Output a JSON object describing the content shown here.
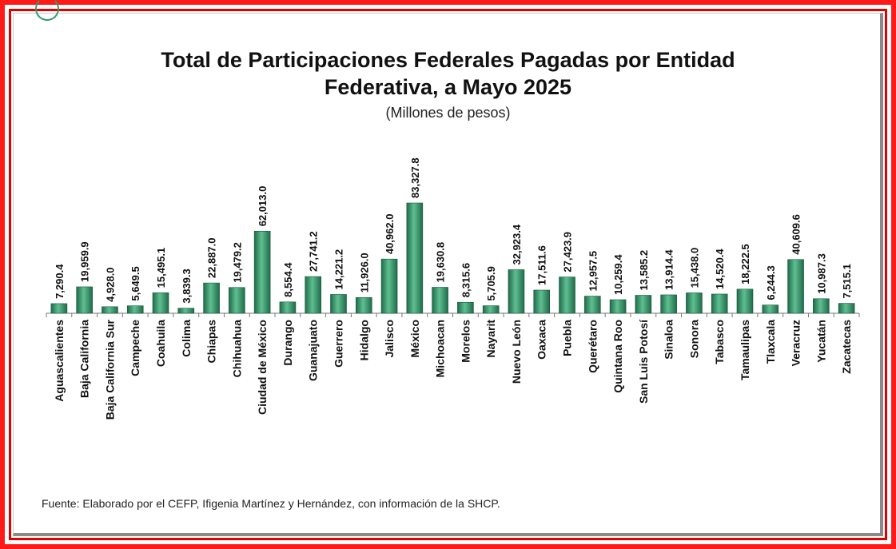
{
  "title_line1": "Total de Participaciones Federales Pagadas por Entidad",
  "title_line2": "Federativa, a Mayo 2025",
  "subtitle": "(Millones de pesos)",
  "footer": "Fuente: Elaborado por el CEFP, Ifigenia Martínez y Hernández, con información de la SHCP.",
  "colors": {
    "bar": "#2b8a60",
    "bar_dark": "#1f6b49",
    "bar_light": "#5fbf92",
    "frame": "#ff1a1a"
  },
  "chart_data": {
    "type": "bar",
    "title": "Total de Participaciones Federales Pagadas por Entidad Federativa, a Mayo 2025",
    "subtitle": "(Millones de pesos)",
    "ylim": [
      0,
      90000
    ],
    "grid": false,
    "categories": [
      "Aguascalientes",
      "Baja California",
      "Baja California Sur",
      "Campeche",
      "Coahuila",
      "Colima",
      "Chiapas",
      "Chihuahua",
      "Ciudad de México",
      "Durango",
      "Guanajuato",
      "Guerrero",
      "Hidalgo",
      "Jalisco",
      "México",
      "Michoacan",
      "Morelos",
      "Nayarit",
      "Nuevo León",
      "Oaxaca",
      "Puebla",
      "Querétaro",
      "Quintana Roo",
      "San Luis Potosí",
      "Sinaloa",
      "Sonora",
      "Tabasco",
      "Tamaulipas",
      "Tlaxcala",
      "Veracruz",
      "Yucatán",
      "Zacatecas"
    ],
    "values": [
      7290.4,
      19959.9,
      4928.0,
      5649.5,
      15495.1,
      3839.3,
      22887.0,
      19479.2,
      62013.0,
      8554.4,
      27741.2,
      14221.2,
      11926.0,
      40962.0,
      83327.8,
      19630.8,
      8315.6,
      5705.9,
      32923.4,
      17511.6,
      27423.9,
      12957.5,
      10259.4,
      13585.2,
      13914.4,
      15438.0,
      14520.4,
      18222.5,
      6244.3,
      40609.6,
      10987.3,
      7515.1
    ],
    "labels": [
      "7,290.4",
      "19,959.9",
      "4,928.0",
      "5,649.5",
      "15,495.1",
      "3,839.3",
      "22,887.0",
      "19,479.2",
      "62,013.0",
      "8,554.4",
      "27,741.2",
      "14,221.2",
      "11,926.0",
      "40,962.0",
      "83,327.8",
      "19,630.8",
      "8,315.6",
      "5,705.9",
      "32,923.4",
      "17,511.6",
      "27,423.9",
      "12,957.5",
      "10,259.4",
      "13,585.2",
      "13,914.4",
      "15,438.0",
      "14,520.4",
      "18,222.5",
      "6,244.3",
      "40,609.6",
      "10,987.3",
      "7,515.1"
    ]
  }
}
